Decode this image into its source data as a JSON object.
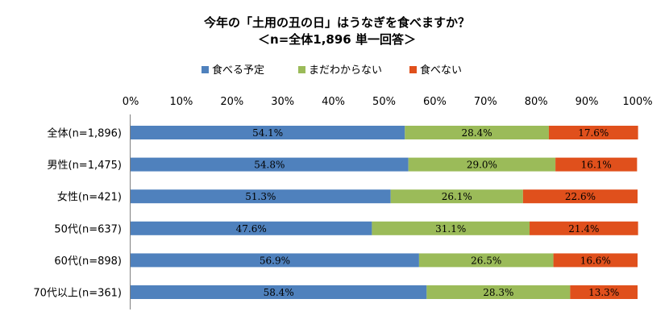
{
  "chart_data": {
    "type": "bar",
    "orientation": "horizontal",
    "stacked": true,
    "title": "今年の「土用の丑の日」はうなぎを食べますか？",
    "subtitle": "＜n=全体1,896  単一回答＞",
    "xlim": [
      0,
      100
    ],
    "ticks": [
      "0%",
      "10%",
      "20%",
      "30%",
      "40%",
      "50%",
      "60%",
      "70%",
      "80%",
      "90%",
      "100%"
    ],
    "legend_position": "top",
    "categories": [
      "全体(n=1,896)",
      "男性(n=1,475)",
      "女性(n=421)",
      "50代(n=637)",
      "60代(n=898)",
      "70代以上(n=361)"
    ],
    "series": [
      {
        "name": "食べる予定",
        "color": "#4f81bd",
        "values": [
          54.1,
          54.8,
          51.3,
          47.6,
          56.9,
          58.4
        ],
        "labels": [
          "54.1%",
          "54.8%",
          "51.3%",
          "47.6%",
          "56.9%",
          "58.4%"
        ]
      },
      {
        "name": "まだわからない",
        "color": "#9bbb59",
        "values": [
          28.4,
          29.0,
          26.1,
          31.1,
          26.5,
          28.3
        ],
        "labels": [
          "28.4%",
          "29.0%",
          "26.1%",
          "31.1%",
          "26.5%",
          "28.3%"
        ]
      },
      {
        "name": "食べない",
        "color": "#e0501c",
        "values": [
          17.6,
          16.1,
          22.6,
          21.4,
          16.6,
          13.3
        ],
        "labels": [
          "17.6%",
          "16.1%",
          "22.6%",
          "21.4%",
          "16.6%",
          "13.3%"
        ]
      }
    ],
    "grid": false
  }
}
